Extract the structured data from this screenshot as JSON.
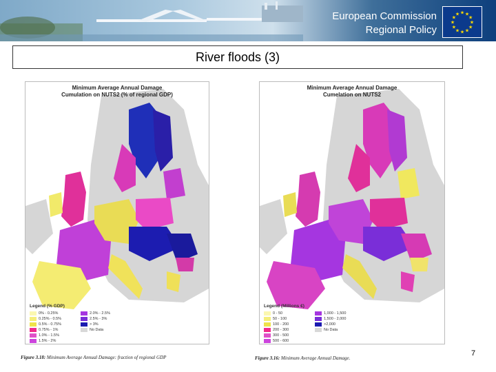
{
  "header": {
    "org_line1": "European Commission",
    "org_line2": "Regional Policy",
    "logo": "eu-flag-icon"
  },
  "slide": {
    "title": "River floods (3)",
    "page_number": "7"
  },
  "maps": {
    "left": {
      "title_line1": "Minimum Average Annual Damage",
      "title_line2": "Cumulation on NUTS2 (% of regional GDP)",
      "legend_title": "Legend (% GDP)",
      "legend": [
        {
          "label": "0% - 0.25%",
          "color": "#fbf7b0"
        },
        {
          "label": "0.25% - 0.5%",
          "color": "#f5ee7a"
        },
        {
          "label": "0.5% - 0.75%",
          "color": "#efe24a"
        },
        {
          "label": "0.75% - 1%",
          "color": "#f02a8c"
        },
        {
          "label": "1.0% - 1.5%",
          "color": "#e050c8"
        },
        {
          "label": "1.5% - 2%",
          "color": "#cc44dd"
        },
        {
          "label": "2.0% - 2.5%",
          "color": "#a636e0"
        },
        {
          "label": "2.5% - 3%",
          "color": "#7a2ed8"
        },
        {
          "label": "> 3%",
          "color": "#1b1bb0"
        },
        {
          "label": "No Data",
          "color": "#d8d8d8"
        }
      ],
      "caption_label": "Figure 3.18:",
      "caption_text": "Minimum Average Annual Damage: fraction of regional GDP"
    },
    "right": {
      "title_line1": "Minimum Average Annual Damage",
      "title_line2": "Cumelation on NUTS2",
      "legend_title": "Legend (Millions €)",
      "legend": [
        {
          "label": "0 - 50",
          "color": "#fbf7b0"
        },
        {
          "label": "50 - 100",
          "color": "#f5ee7a"
        },
        {
          "label": "100 - 200",
          "color": "#efe24a"
        },
        {
          "label": "200 - 300",
          "color": "#f02a8c"
        },
        {
          "label": "300 - 500",
          "color": "#e050c8"
        },
        {
          "label": "500 - 600",
          "color": "#cc44dd"
        },
        {
          "label": "1,000 - 1,500",
          "color": "#a636e0"
        },
        {
          "label": "1,500 - 2,000",
          "color": "#7a2ed8"
        },
        {
          "label": ">2,000",
          "color": "#1b1bb0"
        },
        {
          "label": "No Data",
          "color": "#d8d8d8"
        }
      ],
      "caption_label": "Figure 3.16:",
      "caption_text": "Minimum Average Annual Damage."
    }
  }
}
